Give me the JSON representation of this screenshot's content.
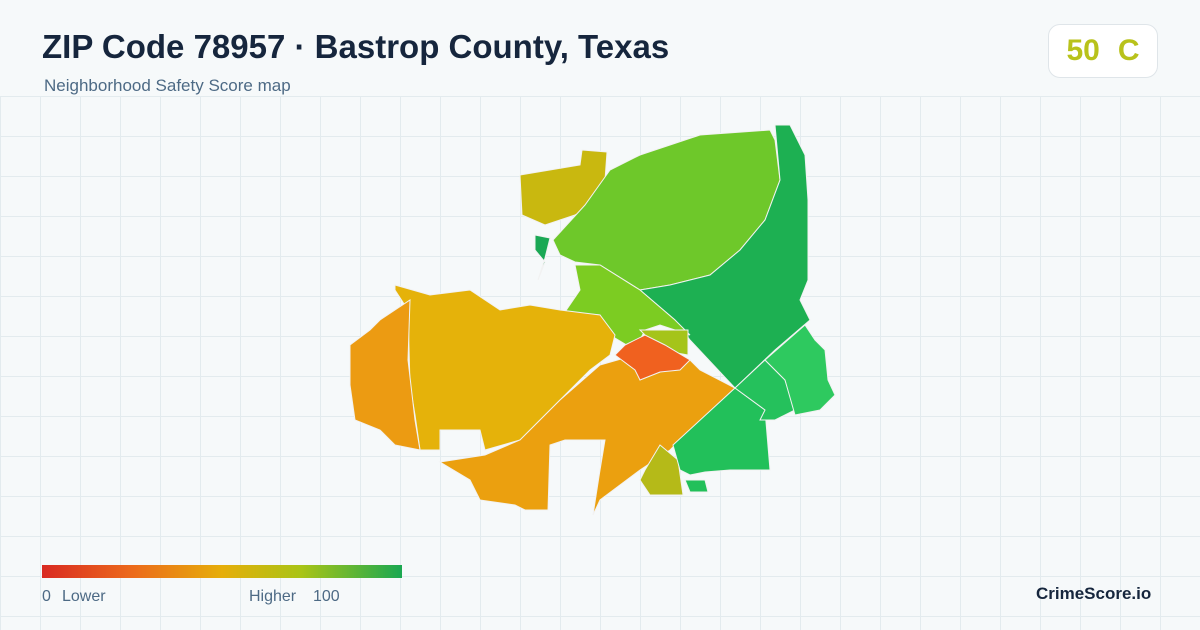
{
  "header": {
    "title": "ZIP Code 78957 · Bastrop County, Texas",
    "subtitle": "Neighborhood Safety Score map"
  },
  "score": {
    "value": 50,
    "grade": "C"
  },
  "legend": {
    "min": 0,
    "min_label": "Lower",
    "max_label": "Higher",
    "max": 100
  },
  "brand": "CrimeScore.io"
}
